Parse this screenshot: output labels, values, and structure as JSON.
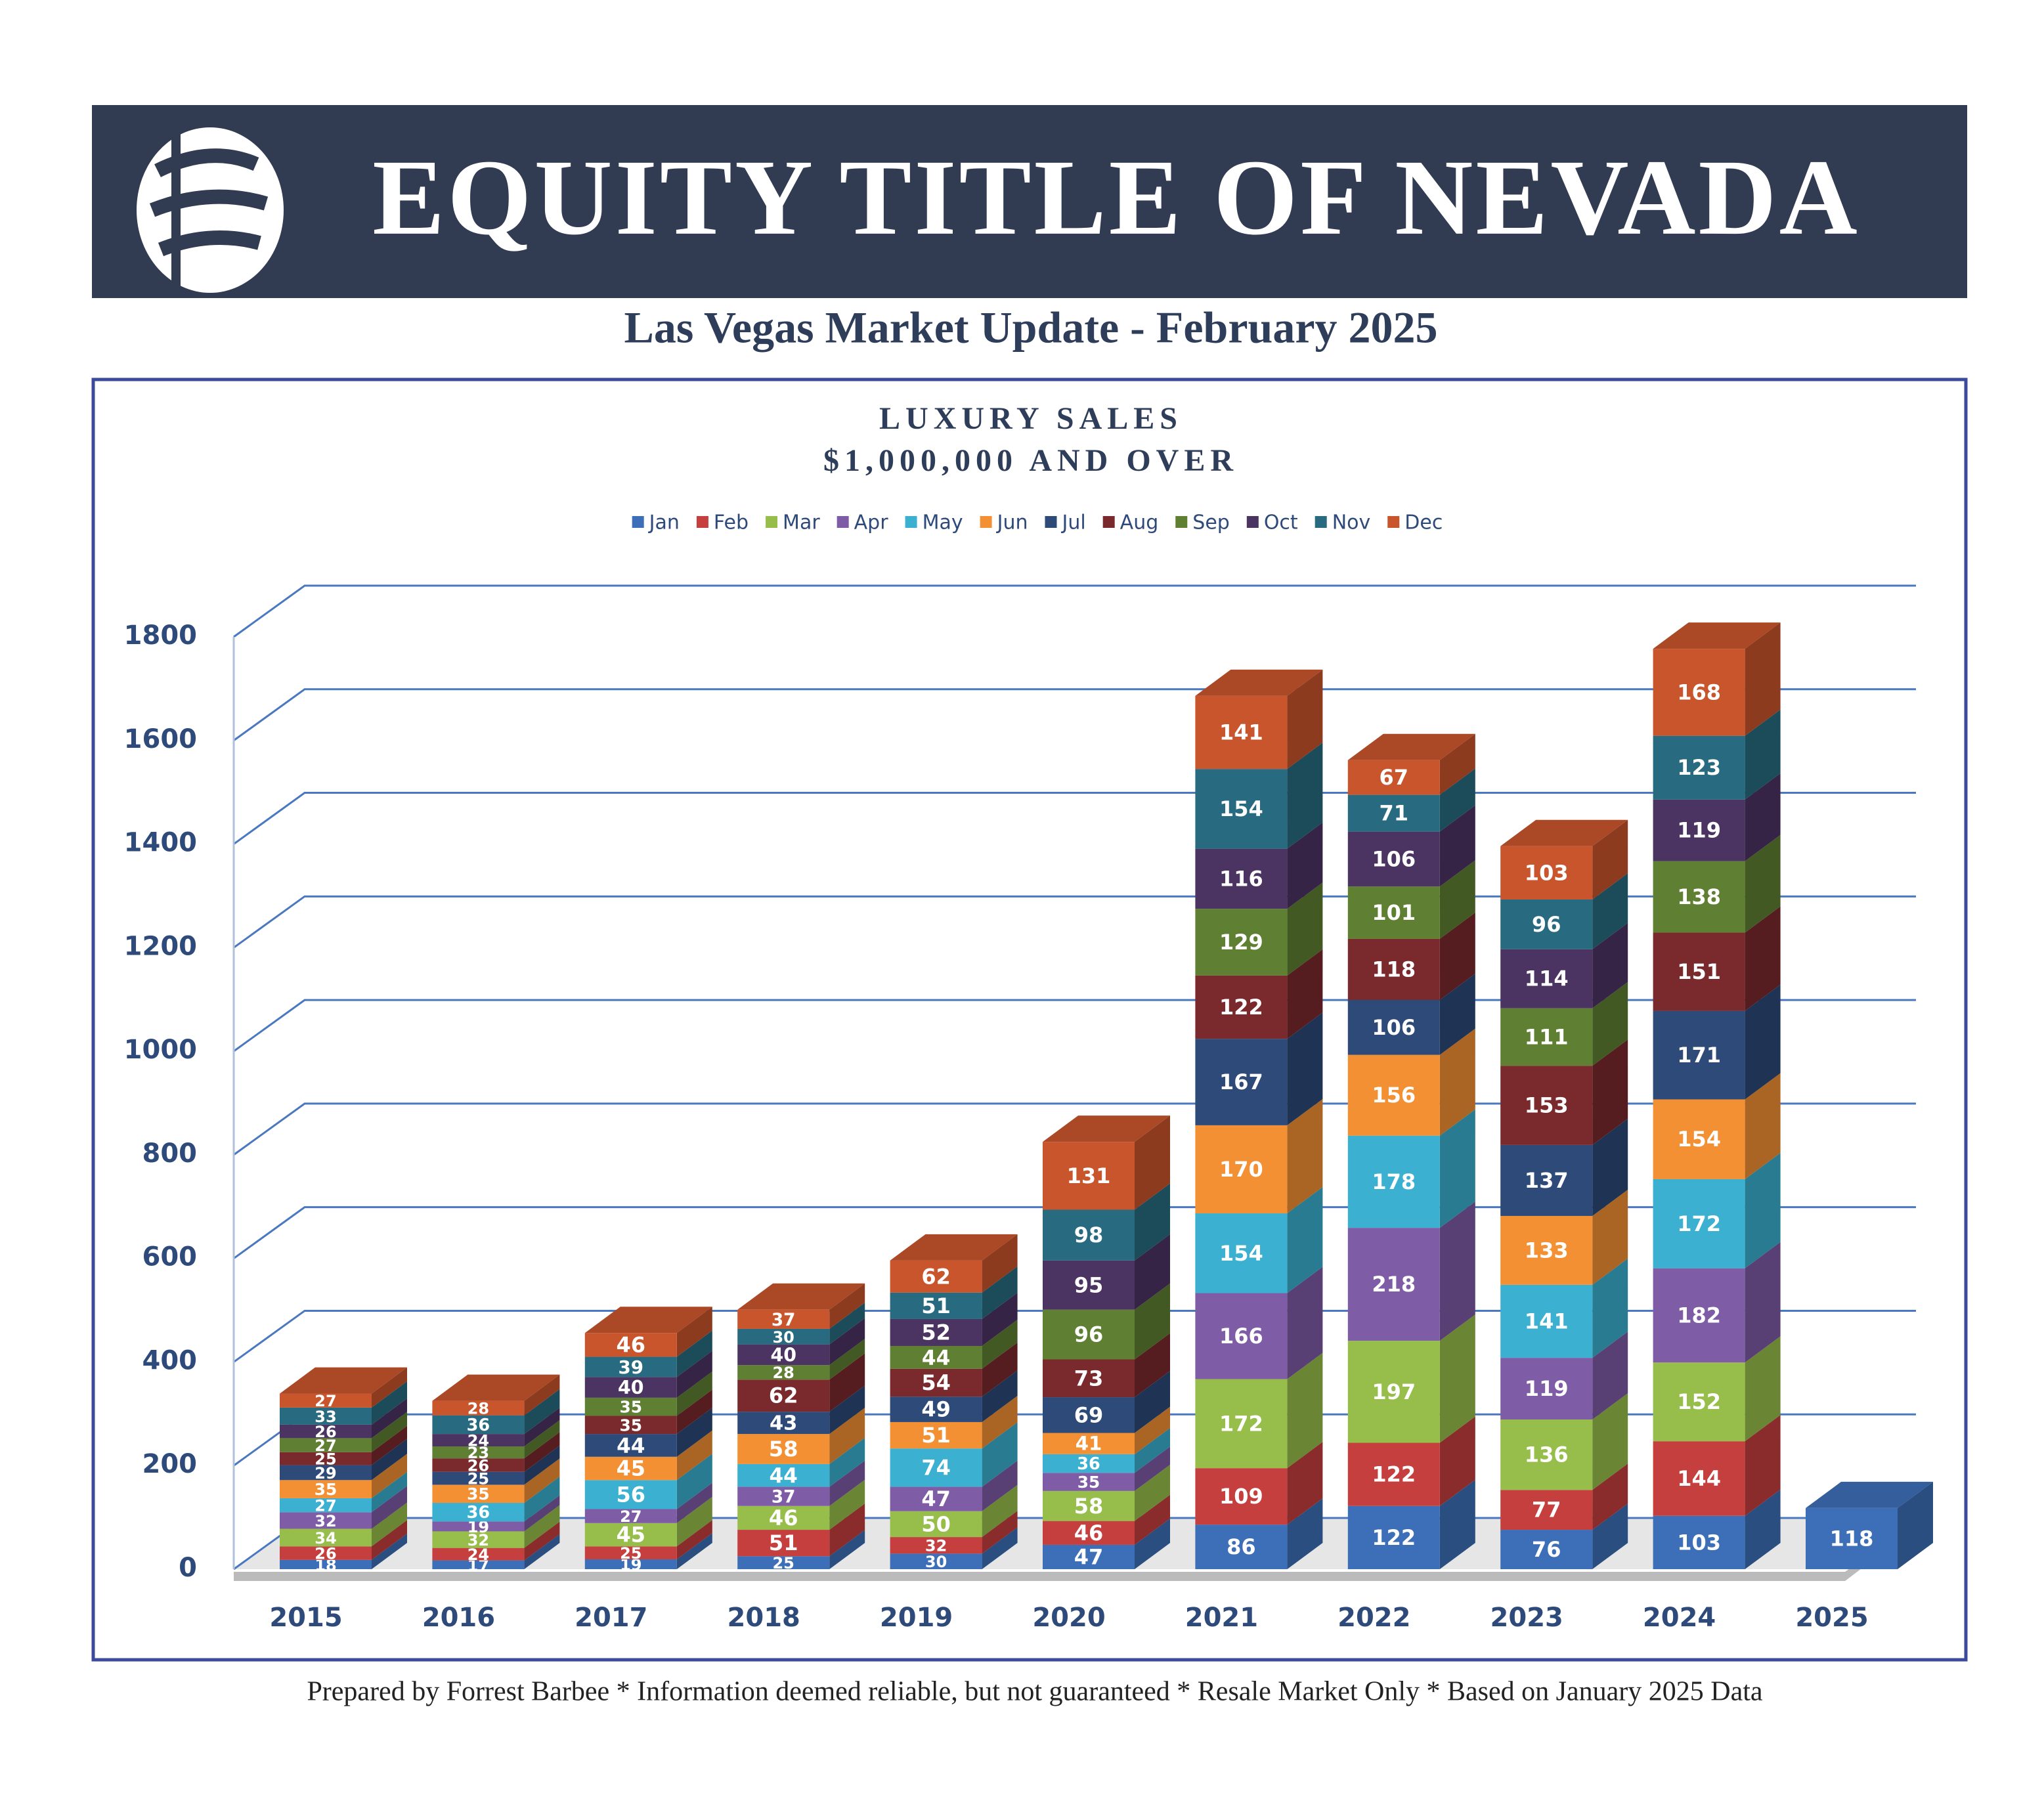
{
  "header": {
    "title": "EQUITY TITLE OF NEVADA",
    "subtitle": "Las Vegas Market Update - February 2025"
  },
  "footer": "Prepared by Forrest Barbee * Information deemed reliable, but not guaranteed * Resale Market Only * Based on January 2025 Data",
  "chart_data": {
    "type": "bar",
    "stacked": true,
    "title": "LUXURY SALES",
    "subtitle": "$1,000,000 AND OVER",
    "categories": [
      "2015",
      "2016",
      "2017",
      "2018",
      "2019",
      "2020",
      "2021",
      "2022",
      "2023",
      "2024",
      "2025"
    ],
    "series": [
      {
        "name": "Jan",
        "color": "#3d6fb8",
        "values": [
          18,
          17,
          19,
          25,
          30,
          47,
          86,
          122,
          76,
          103,
          118
        ]
      },
      {
        "name": "Feb",
        "color": "#c43f3d",
        "values": [
          26,
          24,
          25,
          51,
          32,
          46,
          109,
          122,
          77,
          144,
          null
        ]
      },
      {
        "name": "Mar",
        "color": "#97be4a",
        "values": [
          34,
          32,
          45,
          46,
          50,
          58,
          172,
          197,
          136,
          152,
          null
        ]
      },
      {
        "name": "Apr",
        "color": "#7f5ca6",
        "values": [
          32,
          19,
          27,
          37,
          47,
          35,
          166,
          218,
          119,
          182,
          null
        ]
      },
      {
        "name": "May",
        "color": "#3bb0d0",
        "values": [
          27,
          36,
          56,
          44,
          74,
          36,
          154,
          178,
          141,
          172,
          null
        ]
      },
      {
        "name": "Jun",
        "color": "#f39033",
        "values": [
          35,
          35,
          45,
          58,
          51,
          41,
          170,
          156,
          133,
          154,
          null
        ]
      },
      {
        "name": "Jul",
        "color": "#2d4a78",
        "values": [
          29,
          25,
          44,
          43,
          49,
          69,
          167,
          106,
          137,
          171,
          null
        ]
      },
      {
        "name": "Aug",
        "color": "#7a2a2c",
        "values": [
          25,
          26,
          35,
          62,
          54,
          73,
          122,
          118,
          153,
          151,
          null
        ]
      },
      {
        "name": "Sep",
        "color": "#5f7f32",
        "values": [
          27,
          23,
          35,
          28,
          44,
          96,
          129,
          101,
          111,
          138,
          null
        ]
      },
      {
        "name": "Oct",
        "color": "#4b3462",
        "values": [
          26,
          24,
          40,
          40,
          52,
          95,
          116,
          106,
          114,
          119,
          null
        ]
      },
      {
        "name": "Nov",
        "color": "#286b80",
        "values": [
          33,
          36,
          39,
          30,
          51,
          98,
          154,
          71,
          96,
          123,
          null
        ]
      },
      {
        "name": "Dec",
        "color": "#c9552d",
        "values": [
          27,
          28,
          46,
          37,
          62,
          131,
          141,
          67,
          103,
          168,
          null
        ]
      }
    ],
    "ylim": [
      0,
      1800
    ],
    "yticks": [
      0,
      200,
      400,
      600,
      800,
      1000,
      1200,
      1400,
      1600,
      1800
    ],
    "grid": true,
    "legend": "top"
  }
}
